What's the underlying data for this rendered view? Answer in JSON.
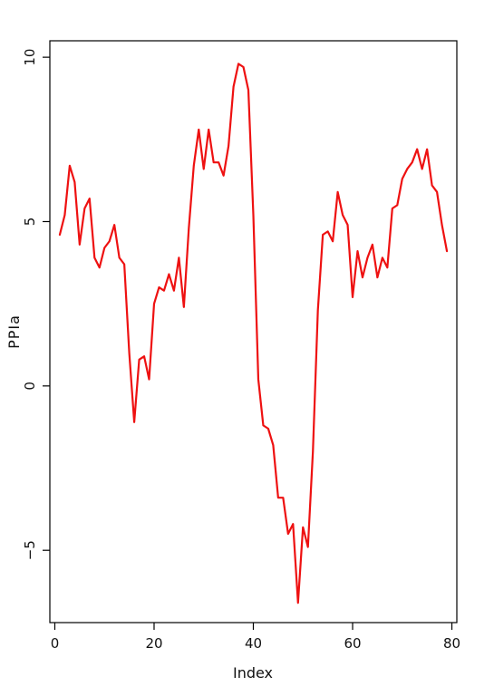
{
  "chart_data": {
    "type": "line",
    "title": "",
    "xlabel": "Index",
    "ylabel": "PPIa",
    "xlim": [
      -1,
      81
    ],
    "ylim": [
      -7.2,
      10.5
    ],
    "xticks": [
      0,
      20,
      40,
      60,
      80
    ],
    "yticks": [
      -5,
      0,
      5,
      10
    ],
    "xtick_labels": [
      "0",
      "20",
      "40",
      "60",
      "80"
    ],
    "ytick_labels": [
      "−5",
      "0",
      "5",
      "10"
    ],
    "grid": false,
    "legend": "none",
    "series": [
      {
        "color": "#ee1111",
        "x": [
          1,
          2,
          3,
          4,
          5,
          6,
          7,
          8,
          9,
          10,
          11,
          12,
          13,
          14,
          15,
          16,
          17,
          18,
          19,
          20,
          21,
          22,
          23,
          24,
          25,
          26,
          27,
          28,
          29,
          30,
          31,
          32,
          33,
          34,
          35,
          36,
          37,
          38,
          39,
          40,
          41,
          42,
          43,
          44,
          45,
          46,
          47,
          48,
          49,
          50,
          51,
          52,
          53,
          54,
          55,
          56,
          57,
          58,
          59,
          60,
          61,
          62,
          63,
          64,
          65,
          66,
          67,
          68,
          69,
          70,
          71,
          72,
          73,
          74,
          75,
          76,
          77,
          78,
          79
        ],
        "y": [
          4.6,
          5.2,
          6.7,
          6.2,
          4.3,
          5.4,
          5.7,
          3.9,
          3.6,
          4.2,
          4.4,
          4.9,
          3.9,
          3.7,
          1.0,
          -1.1,
          0.8,
          0.9,
          0.2,
          2.5,
          3.0,
          2.9,
          3.4,
          2.9,
          3.9,
          2.4,
          4.8,
          6.7,
          7.8,
          6.6,
          7.8,
          6.8,
          6.8,
          6.4,
          7.3,
          9.1,
          9.8,
          9.7,
          9.0,
          5.2,
          0.2,
          -1.2,
          -1.3,
          -1.8,
          -3.4,
          -3.4,
          -4.5,
          -4.2,
          -6.6,
          -4.3,
          -4.9,
          -2.0,
          2.3,
          4.6,
          4.7,
          4.4,
          5.9,
          5.2,
          4.9,
          2.7,
          4.1,
          3.3,
          3.9,
          4.3,
          3.3,
          3.9,
          3.6,
          5.4,
          5.5,
          6.3,
          6.6,
          6.8,
          7.2,
          6.6,
          7.2,
          6.1,
          5.9,
          4.9,
          4.1
        ]
      }
    ]
  }
}
